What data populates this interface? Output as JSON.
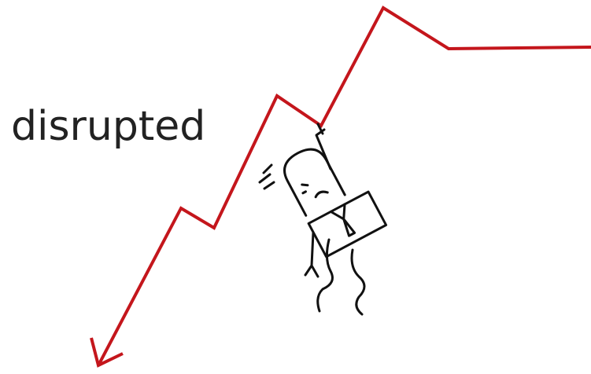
{
  "caption": "disrupted"
}
